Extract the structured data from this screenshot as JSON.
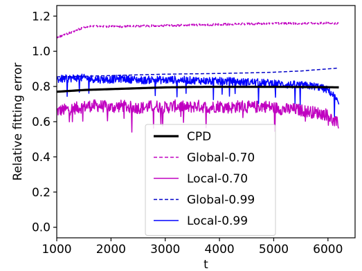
{
  "chart_data": {
    "type": "line",
    "xlabel": "t",
    "ylabel": "Relative fitting error",
    "xlim": [
      1000,
      6500
    ],
    "ylim": [
      -0.06,
      1.26
    ],
    "xticks": [
      "1000",
      "2000",
      "3000",
      "4000",
      "5000",
      "6000"
    ],
    "yticks": [
      "0.0",
      "0.2",
      "0.4",
      "0.6",
      "0.8",
      "1.0",
      "1.2"
    ],
    "grid": false,
    "legend_position": "lower-center",
    "series": [
      {
        "name": "CPD",
        "color": "#000000",
        "style": "solid",
        "x": [
          1000,
          1500,
          2000,
          2500,
          3000,
          3500,
          4000,
          4500,
          5000,
          5500,
          6000,
          6200
        ],
        "y": [
          0.77,
          0.78,
          0.785,
          0.79,
          0.795,
          0.797,
          0.798,
          0.798,
          0.798,
          0.797,
          0.796,
          0.795
        ]
      },
      {
        "name": "Global-0.70",
        "color": "#c000c0",
        "style": "dashed",
        "x": [
          1000,
          1200,
          1400,
          1600,
          1800,
          2000,
          2400,
          2800,
          3200,
          3600,
          4000,
          4400,
          4800,
          5200,
          5600,
          6000,
          6200
        ],
        "y": [
          1.08,
          1.1,
          1.125,
          1.14,
          1.145,
          1.14,
          1.142,
          1.145,
          1.147,
          1.15,
          1.152,
          1.155,
          1.157,
          1.158,
          1.159,
          1.16,
          1.16
        ]
      },
      {
        "name": "Local-0.70",
        "color": "#c000c0",
        "style": "solid",
        "x": [
          1000,
          1200,
          1400,
          1600,
          1800,
          2000,
          2200,
          2400,
          2600,
          2800,
          3000,
          3200,
          3400,
          3600,
          3800,
          4000,
          4200,
          4400,
          4600,
          4800,
          5000,
          5200,
          5400,
          5600,
          5800,
          6000,
          6100,
          6200
        ],
        "y": [
          0.66,
          0.67,
          0.68,
          0.69,
          0.69,
          0.68,
          0.69,
          0.68,
          0.68,
          0.69,
          0.68,
          0.69,
          0.68,
          0.69,
          0.68,
          0.69,
          0.68,
          0.69,
          0.68,
          0.69,
          0.68,
          0.67,
          0.67,
          0.66,
          0.65,
          0.64,
          0.6,
          0.59
        ]
      },
      {
        "name": "Global-0.99",
        "color": "#0000c8",
        "style": "dashed",
        "x": [
          1000,
          1500,
          2000,
          2500,
          3000,
          3500,
          4000,
          4500,
          5000,
          5500,
          6000,
          6200
        ],
        "y": [
          0.855,
          0.858,
          0.862,
          0.866,
          0.87,
          0.872,
          0.874,
          0.877,
          0.881,
          0.888,
          0.9,
          0.905
        ]
      },
      {
        "name": "Local-0.99",
        "color": "#0000ff",
        "style": "solid",
        "x": [
          1000,
          1200,
          1400,
          1600,
          1800,
          2000,
          2200,
          2400,
          2600,
          2800,
          3000,
          3200,
          3400,
          3600,
          3800,
          4000,
          4200,
          4400,
          4600,
          4800,
          5000,
          5200,
          5400,
          5600,
          5800,
          6000,
          6100,
          6200
        ],
        "y": [
          0.84,
          0.845,
          0.85,
          0.845,
          0.84,
          0.84,
          0.845,
          0.84,
          0.835,
          0.84,
          0.835,
          0.84,
          0.835,
          0.835,
          0.83,
          0.83,
          0.83,
          0.825,
          0.825,
          0.82,
          0.82,
          0.81,
          0.81,
          0.805,
          0.8,
          0.78,
          0.75,
          0.7
        ]
      }
    ]
  }
}
